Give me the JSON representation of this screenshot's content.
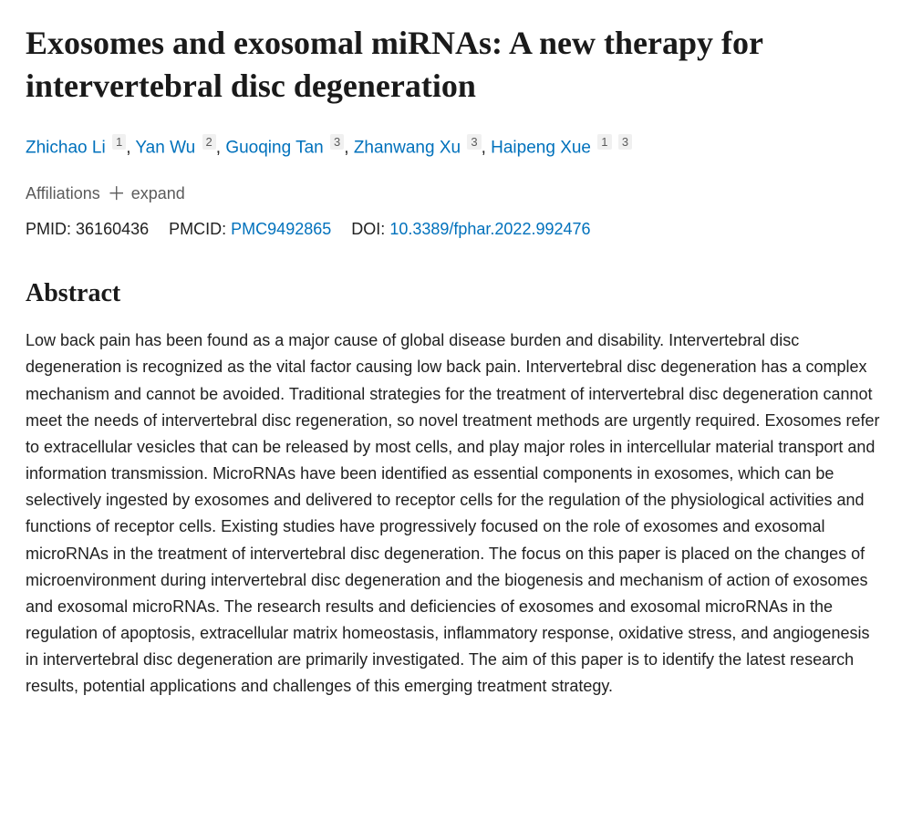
{
  "title": "Exosomes and exosomal miRNAs: A new therapy for intervertebral disc degeneration",
  "authors": [
    {
      "name": "Zhichao Li",
      "affs": [
        "1"
      ]
    },
    {
      "name": "Yan Wu",
      "affs": [
        "2"
      ]
    },
    {
      "name": "Guoqing Tan",
      "affs": [
        "3"
      ]
    },
    {
      "name": "Zhanwang Xu",
      "affs": [
        "3"
      ]
    },
    {
      "name": "Haipeng Xue",
      "affs": [
        "1",
        "3"
      ]
    }
  ],
  "affiliations_label": "Affiliations",
  "expand_label": "expand",
  "ids": {
    "pmid_label": "PMID:",
    "pmid": "36160436",
    "pmcid_label": "PMCID:",
    "pmcid": "PMC9492865",
    "doi_label": "DOI:",
    "doi": "10.3389/fphar.2022.992476"
  },
  "abstract_heading": "Abstract",
  "abstract_text": "Low back pain has been found as a major cause of global disease burden and disability. Intervertebral disc degeneration is recognized as the vital factor causing low back pain. Intervertebral disc degeneration has a complex mechanism and cannot be avoided. Traditional strategies for the treatment of intervertebral disc degeneration cannot meet the needs of intervertebral disc regeneration, so novel treatment methods are urgently required. Exosomes refer to extracellular vesicles that can be released by most cells, and play major roles in intercellular material transport and information transmission. MicroRNAs have been identified as essential components in exosomes, which can be selectively ingested by exosomes and delivered to receptor cells for the regulation of the physiological activities and functions of receptor cells. Existing studies have progressively focused on the role of exosomes and exosomal microRNAs in the treatment of intervertebral disc degeneration. The focus on this paper is placed on the changes of microenvironment during intervertebral disc degeneration and the biogenesis and mechanism of action of exosomes and exosomal microRNAs. The research results and deficiencies of exosomes and exosomal microRNAs in the regulation of apoptosis, extracellular matrix homeostasis, inflammatory response, oxidative stress, and angiogenesis in intervertebral disc degeneration are primarily investigated. The aim of this paper is to identify the latest research results, potential applications and challenges of this emerging treatment strategy.",
  "colors": {
    "link": "#0071bc",
    "text": "#212121",
    "muted": "#5b5b5b",
    "sup_bg": "#f0f0f0",
    "bg": "#ffffff"
  },
  "typography": {
    "title_fontsize": 36,
    "body_fontsize": 18,
    "heading_fontsize": 28,
    "author_fontsize": 19
  }
}
